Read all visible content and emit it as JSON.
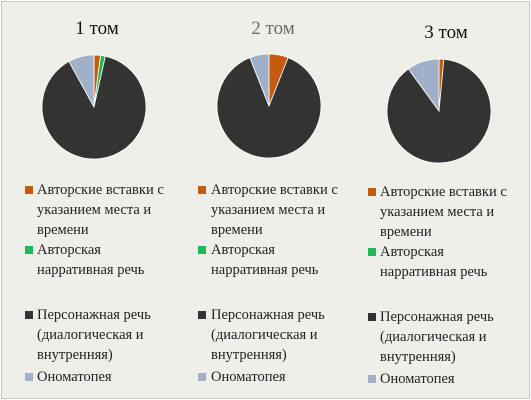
{
  "colors": {
    "author_inserts": "#c55a11",
    "author_narrative": "#1db955",
    "character_speech": "#333333",
    "onomatopoeia": "#9fb0c8"
  },
  "legend": [
    {
      "key": "author_inserts",
      "label": "Авторские вставки с\nуказанием места и\nвремени"
    },
    {
      "key": "author_narrative",
      "label": "Авторская\nнарративная речь"
    },
    {
      "key": "character_speech",
      "label": "Персонажная речь\n(диалогическая и\nвнутренняя)"
    },
    {
      "key": "onomatopoeia",
      "label": "Ономатопея"
    }
  ],
  "chart_data": [
    {
      "type": "pie",
      "title": "1 том",
      "categories": [
        "Авторские вставки с указанием места и времени",
        "Авторская нарративная речь",
        "Персонажная речь (диалогическая и внутренняя)",
        "Ономатопея"
      ],
      "values": [
        2,
        1.5,
        88.5,
        8
      ]
    },
    {
      "type": "pie",
      "title": "2 том",
      "categories": [
        "Авторские вставки с указанием места и времени",
        "Авторская нарративная речь",
        "Персонажная речь (диалогическая и внутренняя)",
        "Ономатопея"
      ],
      "values": [
        6,
        0,
        88,
        6
      ]
    },
    {
      "type": "pie",
      "title": "3 том",
      "categories": [
        "Авторские вставки с указанием места и времени",
        "Авторская нарративная речь",
        "Персонажная речь (диалогическая и внутренняя)",
        "Ономатопея"
      ],
      "values": [
        1.5,
        0,
        88.5,
        10
      ]
    }
  ]
}
